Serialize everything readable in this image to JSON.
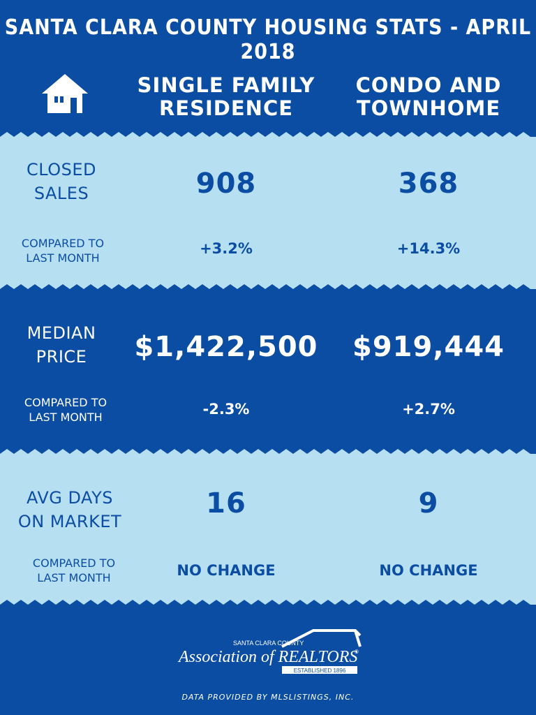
{
  "title": "SANTA CLARA COUNTY HOUSING STATS - APRIL 2018",
  "header": {
    "icon": "house-icon",
    "col1": [
      "SINGLE FAMILY",
      "RESIDENCE"
    ],
    "col2": [
      "CONDO AND",
      "TOWNHOME"
    ]
  },
  "rows": [
    {
      "label": [
        "CLOSED",
        "SALES"
      ],
      "sfr_value": "908",
      "condo_value": "368",
      "compare_label": [
        "COMPARED TO",
        "LAST MONTH"
      ],
      "sfr_change": "+3.2%",
      "condo_change": "+14.3%"
    },
    {
      "label": [
        "MEDIAN",
        "PRICE"
      ],
      "sfr_value": "$1,422,500",
      "condo_value": "$919,444",
      "compare_label": [
        "COMPARED TO",
        "LAST MONTH"
      ],
      "sfr_change": "-2.3%",
      "condo_change": "+2.7%"
    },
    {
      "label": [
        "AVG DAYS",
        "ON MARKET"
      ],
      "sfr_value": "16",
      "condo_value": "9",
      "compare_label": [
        "COMPARED TO",
        "LAST MONTH"
      ],
      "sfr_change": "NO CHANGE",
      "condo_change": "NO CHANGE"
    }
  ],
  "logo": {
    "top": "SANTA CLARA COUNTY",
    "main": "Association of REALTORS",
    "registered": "®",
    "sub": "ESTABLISHED 1896"
  },
  "footer": "DATA PROVIDED BY MLSLISTINGS, INC.",
  "colors": {
    "dark_blue": "#0b4da2",
    "light_blue": "#b6dff2",
    "white": "#ffffff"
  }
}
